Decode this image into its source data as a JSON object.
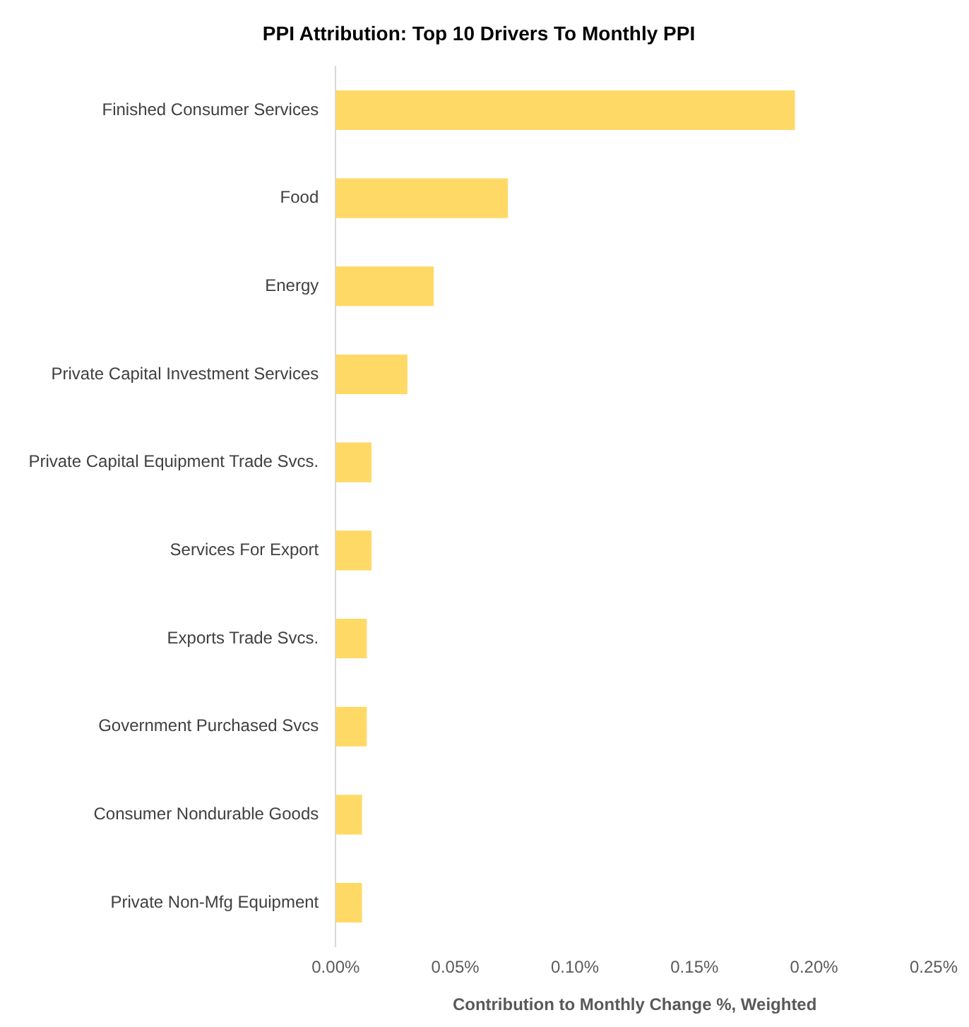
{
  "chart_data": {
    "type": "bar",
    "orientation": "horizontal",
    "title": "PPI Attribution: Top 10 Drivers To Monthly PPI",
    "xlabel": "Contribution to Monthly Change %, Weighted",
    "categories": [
      "Finished Consumer Services",
      "Food",
      "Energy",
      "Private Capital Investment Services",
      "Private Capital Equipment Trade Svcs.",
      "Services For Export",
      "Exports Trade Svcs.",
      "Government Purchased Svcs",
      "Consumer Nondurable Goods",
      "Private Non-Mfg Equipment"
    ],
    "values": [
      0.192,
      0.072,
      0.041,
      0.03,
      0.015,
      0.015,
      0.013,
      0.013,
      0.011,
      0.011
    ],
    "color": "#ffd966",
    "xlim": [
      0,
      0.25
    ],
    "xticks": [
      {
        "value": 0,
        "label": "0.00%"
      },
      {
        "value": 0.05,
        "label": "0.05%"
      },
      {
        "value": 0.1,
        "label": "0.10%"
      },
      {
        "value": 0.15,
        "label": "0.15%"
      },
      {
        "value": 0.2,
        "label": "0.20%"
      },
      {
        "value": 0.25,
        "label": "0.25%"
      }
    ],
    "grid": false,
    "legend": false
  }
}
